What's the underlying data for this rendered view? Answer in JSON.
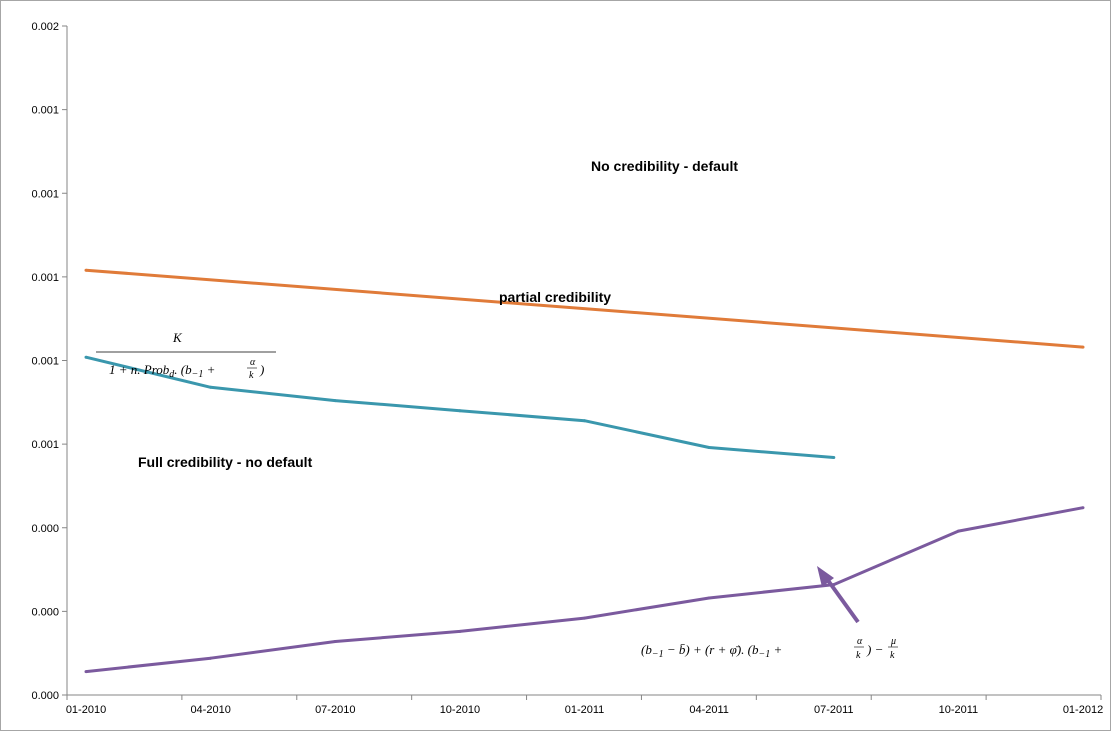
{
  "chart_data": {
    "type": "line",
    "title": "",
    "xlabel": "",
    "ylabel": "",
    "x": [
      "01-2010",
      "04-2010",
      "07-2010",
      "10-2010",
      "01-2011",
      "04-2011",
      "07-2011",
      "10-2011",
      "01-2012"
    ],
    "y_tick_labels": [
      "0.000",
      "0.000",
      "0.000",
      "0.001",
      "0.001",
      "0.001",
      "0.001",
      "0.001",
      "0.002"
    ],
    "ylim": [
      0,
      0.002
    ],
    "grid": false,
    "legend": "none",
    "series": [
      {
        "color": "#e07b39",
        "x": [
          "01-2010",
          "01-2012"
        ],
        "values": [
          0.00127,
          0.00104
        ]
      },
      {
        "color": "#3a97ad",
        "x": [
          "01-2010",
          "04-2010",
          "07-2010",
          "10-2010",
          "01-2011",
          "04-2011",
          "07-2011"
        ],
        "values": [
          0.00101,
          0.00092,
          0.00088,
          0.00085,
          0.00082,
          0.00074,
          0.00071
        ]
      },
      {
        "color": "#7b5a9e",
        "x": [
          "01-2010",
          "04-2010",
          "07-2010",
          "10-2010",
          "01-2011",
          "04-2011",
          "07-2011",
          "10-2011",
          "01-2012"
        ],
        "values": [
          7e-05,
          0.00011,
          0.00016,
          0.00019,
          0.00023,
          0.00029,
          0.00033,
          0.00049,
          0.00056
        ]
      }
    ],
    "annotations": {
      "no_credibility": "No credibility - default",
      "partial_credibility": "partial credibility",
      "full_credibility": "Full credibility - no default",
      "formula_partial": {
        "numerator": "K",
        "denominator_main": "1 + n. Prob",
        "denominator_sub": "d",
        "denominator_rest_a": ". (b",
        "denominator_rest_sub": "−1",
        "denominator_rest_b": " + ",
        "frac_num": "α",
        "frac_den": "k",
        "close": ")"
      },
      "formula_full": {
        "part1": "(b",
        "part1_sub": "−1",
        "part2": " − b̄) + (r + φ̄). (b",
        "part2_sub": "−1",
        "part3": " + ",
        "frac1_num": "α",
        "frac1_den": "k",
        "part4": ") − ",
        "frac2_num": "μ",
        "frac2_den": "k"
      }
    }
  }
}
